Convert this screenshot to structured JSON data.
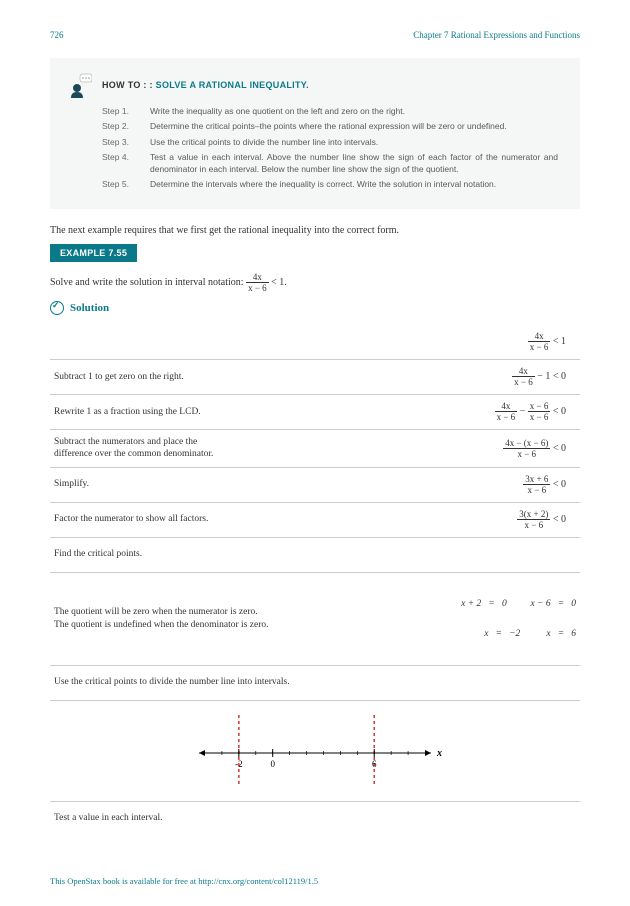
{
  "header": {
    "page_num": "726",
    "chapter": "Chapter 7 Rational Expressions and Functions"
  },
  "howto": {
    "title_prefix": "HOW TO : : ",
    "title": "SOLVE A RATIONAL INEQUALITY.",
    "steps": [
      {
        "label": "Step 1.",
        "text": "Write the inequality as one quotient on the left and zero on the right."
      },
      {
        "label": "Step 2.",
        "text": "Determine the critical points–the points where the rational expression will be zero or undefined."
      },
      {
        "label": "Step 3.",
        "text": "Use the critical points to divide the number line into intervals."
      },
      {
        "label": "Step 4.",
        "text": "Test a value in each interval. Above the number line show the sign of each factor of the numerator and denominator in each interval. Below the number line show the sign of the quotient."
      },
      {
        "label": "Step 5.",
        "text": "Determine the intervals where the inequality is correct. Write the solution in interval notation."
      }
    ]
  },
  "intro": "The next example requires that we first get the rational inequality into the correct form.",
  "example_label": "EXAMPLE 7.55",
  "problem_text": "Solve and write the solution in interval notation: ",
  "problem_math": {
    "num": "4x",
    "den": "x − 6",
    "rhs": " < 1."
  },
  "solution_label": "Solution",
  "rows": [
    {
      "text": "",
      "num": "4x",
      "den": "x − 6",
      "tail": " < 1"
    },
    {
      "text": "Subtract 1 to get zero on the right.",
      "num": "4x",
      "den": "x − 6",
      "tail": " − 1 < 0"
    },
    {
      "text": "Rewrite 1 as a fraction using the LCD.",
      "num": "4x",
      "den": "x − 6",
      "minus": " − ",
      "num2": "x − 6",
      "den2": "x − 6",
      "tail": " < 0"
    },
    {
      "text": "Subtract the numerators and place the\ndifference over the common denominator.",
      "num": "4x − (x − 6)",
      "den": "x − 6",
      "tail": " < 0"
    },
    {
      "text": "Simplify.",
      "num": "3x + 6",
      "den": "x − 6",
      "tail": " < 0"
    },
    {
      "text": "Factor the numerator to show all factors.",
      "num": "3(x + 2)",
      "den": "x − 6",
      "tail": " < 0"
    }
  ],
  "find_cp": "Find the critical points.",
  "cp_text1": "The quotient will be zero when the numerator is zero.",
  "cp_text2": "The quotient is undefined when the denominator is zero.",
  "cp_eq1": "x + 2   =   0          x − 6   =   0",
  "cp_eq2": "x   =   −2           x   =   6",
  "use_cp": "Use the critical points to divide the number line into intervals.",
  "numberline": {
    "xmin": -4,
    "xmax": 9,
    "ticks": [
      -2,
      0,
      6
    ],
    "dash_color": "#d33",
    "axis_color": "#000"
  },
  "test_val": "Test a value in each interval.",
  "footer": "This OpenStax book is available for free at http://cnx.org/content/col12119/1.5"
}
